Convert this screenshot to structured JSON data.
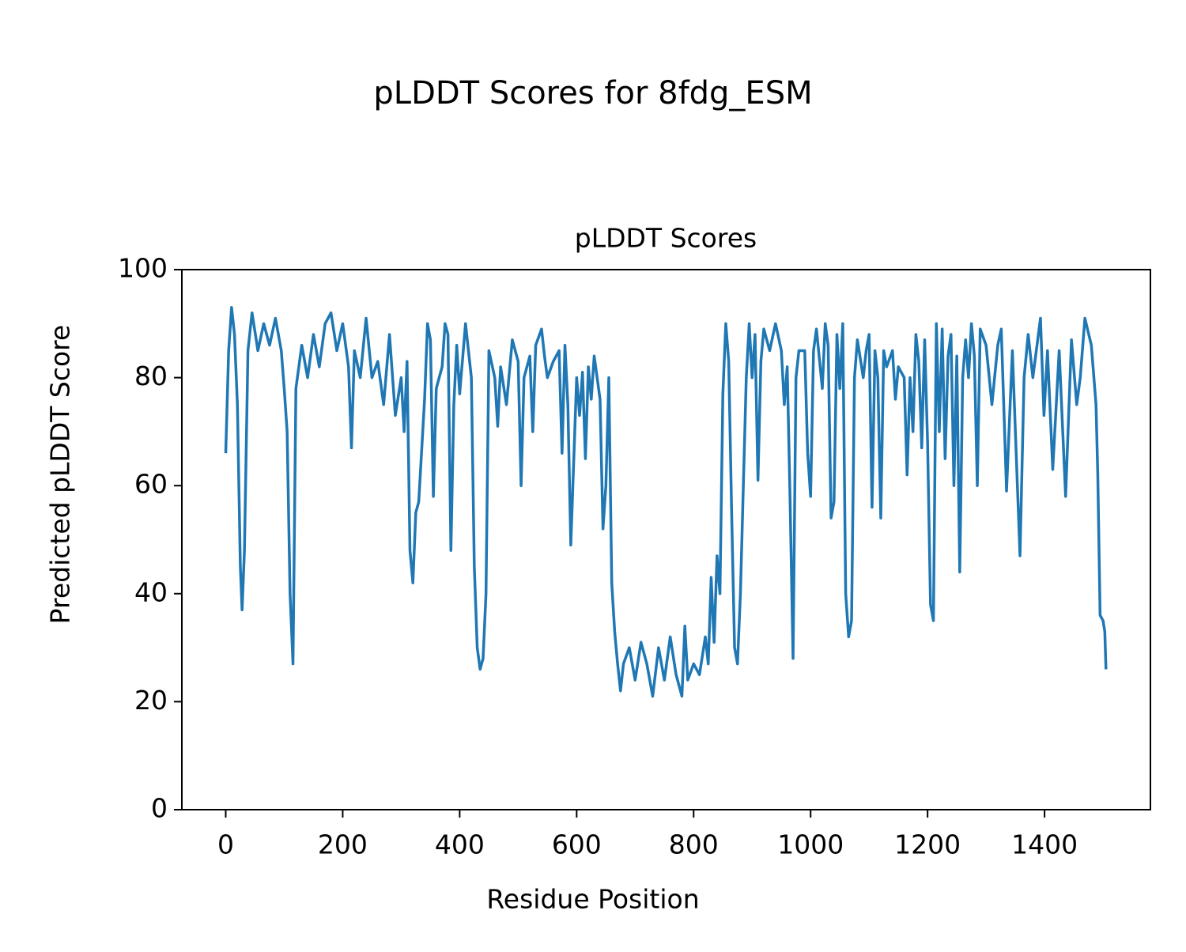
{
  "chart_data": {
    "type": "line",
    "title": "pLDDT Scores for 8fdg_ESM",
    "subtitle": "pLDDT Scores",
    "x_label": "Residue Position",
    "y_label": "Predicted pLDDT Score",
    "xlim": [
      -75,
      1581
    ],
    "ylim": [
      0,
      100
    ],
    "xticks": [
      0,
      200,
      400,
      600,
      800,
      1000,
      1200,
      1400
    ],
    "yticks": [
      0,
      20,
      40,
      60,
      80,
      100
    ],
    "grid": false,
    "series": [
      {
        "name": "pLDDT",
        "color": "#1f77b4",
        "x": [
          0,
          5,
          10,
          15,
          20,
          25,
          28,
          32,
          38,
          45,
          55,
          65,
          75,
          85,
          95,
          100,
          105,
          110,
          115,
          120,
          130,
          140,
          150,
          160,
          170,
          180,
          190,
          200,
          210,
          215,
          220,
          230,
          240,
          250,
          260,
          270,
          280,
          290,
          300,
          305,
          310,
          315,
          320,
          325,
          330,
          340,
          345,
          350,
          355,
          360,
          370,
          375,
          380,
          385,
          390,
          395,
          400,
          410,
          420,
          425,
          430,
          435,
          440,
          445,
          450,
          460,
          465,
          470,
          480,
          490,
          500,
          505,
          510,
          520,
          525,
          530,
          540,
          545,
          550,
          560,
          570,
          575,
          580,
          585,
          590,
          600,
          605,
          610,
          615,
          620,
          625,
          630,
          640,
          645,
          650,
          655,
          660,
          665,
          670,
          675,
          680,
          690,
          700,
          710,
          720,
          730,
          740,
          750,
          760,
          770,
          780,
          785,
          790,
          800,
          810,
          820,
          825,
          830,
          835,
          840,
          845,
          850,
          855,
          860,
          865,
          870,
          875,
          880,
          890,
          895,
          900,
          905,
          910,
          915,
          920,
          930,
          940,
          950,
          955,
          960,
          965,
          970,
          975,
          980,
          990,
          995,
          1000,
          1005,
          1010,
          1020,
          1025,
          1030,
          1035,
          1040,
          1045,
          1050,
          1055,
          1060,
          1065,
          1070,
          1075,
          1080,
          1090,
          1095,
          1100,
          1105,
          1110,
          1115,
          1120,
          1125,
          1130,
          1140,
          1145,
          1150,
          1160,
          1165,
          1170,
          1175,
          1180,
          1185,
          1190,
          1195,
          1200,
          1205,
          1210,
          1215,
          1220,
          1225,
          1230,
          1235,
          1240,
          1245,
          1250,
          1255,
          1260,
          1265,
          1270,
          1275,
          1280,
          1285,
          1290,
          1300,
          1310,
          1320,
          1326,
          1335,
          1345,
          1358,
          1365,
          1372,
          1380,
          1393,
          1399,
          1405,
          1414,
          1425,
          1436,
          1446,
          1455,
          1461,
          1469,
          1480,
          1488,
          1491,
          1495,
          1500,
          1503,
          1505
        ],
        "values": [
          66,
          85,
          93,
          88,
          75,
          45,
          37,
          48,
          85,
          92,
          85,
          90,
          86,
          91,
          85,
          78,
          70,
          40,
          27,
          78,
          86,
          80,
          88,
          82,
          90,
          92,
          85,
          90,
          82,
          67,
          85,
          80,
          91,
          80,
          83,
          75,
          88,
          73,
          80,
          70,
          83,
          48,
          42,
          55,
          57,
          76,
          90,
          87,
          58,
          78,
          82,
          90,
          88,
          48,
          75,
          86,
          77,
          90,
          80,
          45,
          30,
          26,
          28,
          40,
          85,
          80,
          71,
          82,
          75,
          87,
          83,
          60,
          80,
          84,
          70,
          86,
          89,
          84,
          80,
          83,
          85,
          66,
          86,
          75,
          49,
          80,
          73,
          81,
          65,
          82,
          76,
          84,
          76,
          52,
          60,
          80,
          42,
          33,
          27,
          22,
          27,
          30,
          24,
          31,
          27,
          21,
          30,
          24,
          32,
          25,
          21,
          34,
          24,
          27,
          25,
          32,
          27,
          43,
          31,
          47,
          40,
          77,
          90,
          83,
          55,
          30,
          27,
          40,
          80,
          90,
          80,
          88,
          61,
          83,
          89,
          85,
          90,
          85,
          75,
          82,
          57,
          28,
          80,
          85,
          85,
          66,
          58,
          85,
          89,
          78,
          90,
          86,
          54,
          57,
          88,
          78,
          90,
          40,
          32,
          35,
          80,
          87,
          80,
          85,
          88,
          56,
          85,
          80,
          54,
          85,
          82,
          85,
          76,
          82,
          80,
          62,
          80,
          70,
          88,
          83,
          67,
          87,
          68,
          38,
          35,
          90,
          70,
          89,
          65,
          84,
          88,
          60,
          84,
          44,
          80,
          87,
          80,
          90,
          84,
          60,
          89,
          86,
          75,
          86,
          89,
          59,
          85,
          47,
          80,
          88,
          80,
          91,
          73,
          85,
          63,
          85,
          58,
          87,
          75,
          80,
          91,
          86,
          75,
          62,
          36,
          35,
          33,
          26
        ]
      }
    ]
  }
}
